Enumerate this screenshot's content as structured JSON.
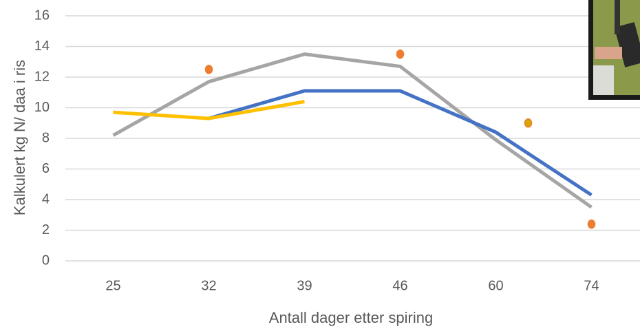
{
  "chart_data": {
    "type": "line",
    "x_label": "Antall dager etter spiring",
    "y_label": "Kalkulert kg N/ daa i ris",
    "categories": [
      "25",
      "32",
      "39",
      "46",
      "60",
      "74"
    ],
    "ylim": [
      0,
      16
    ],
    "yticks": [
      0,
      2,
      4,
      6,
      8,
      10,
      12,
      14,
      16
    ],
    "grid": true,
    "series": [
      {
        "mode": "line",
        "color": "#a5a5a5",
        "values": [
          8.2,
          11.7,
          13.5,
          12.7,
          7.9,
          3.5
        ]
      },
      {
        "mode": "line",
        "color": "#4472c4",
        "values": [
          null,
          9.3,
          11.1,
          11.1,
          8.4,
          4.3
        ]
      },
      {
        "mode": "line",
        "color": "#ffc000",
        "values": [
          9.7,
          9.3,
          10.4,
          null,
          null,
          null
        ]
      },
      {
        "mode": "markers",
        "color": "#ed7d31",
        "values": [
          null,
          12.5,
          null,
          13.5,
          null,
          2.4
        ]
      },
      {
        "mode": "markers",
        "color": "#d4a800",
        "values": [
          null,
          null,
          null,
          null,
          9.0,
          null
        ]
      }
    ]
  }
}
